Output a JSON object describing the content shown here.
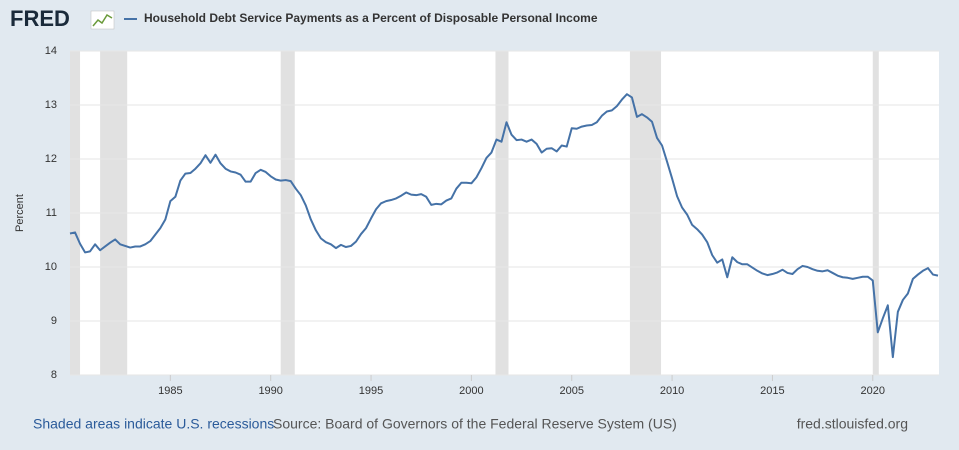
{
  "logo": "FRED",
  "footer": {
    "recession_note": "Shaded areas indicate U.S. recessions",
    "source": "Source: Board of Governors of the Federal Reserve System (US)",
    "site": "fred.stlouisfed.org"
  },
  "chart_data": {
    "type": "line",
    "ylabel": "Percent",
    "xlim": [
      1980,
      2023.3
    ],
    "xticks": [
      1985,
      1990,
      1995,
      2000,
      2005,
      2010,
      2015,
      2020
    ],
    "ylim": [
      8,
      14
    ],
    "yticks": [
      8,
      9,
      10,
      11,
      12,
      13,
      14
    ],
    "grid": true,
    "recession_color": "#e1e1e1",
    "recessions": [
      [
        1980,
        1980.5
      ],
      [
        1981.5,
        1982.85
      ],
      [
        1990.5,
        1991.2
      ],
      [
        2001.2,
        2001.85
      ],
      [
        2007.9,
        2009.45
      ],
      [
        2020,
        2020.3
      ]
    ],
    "x": [
      1980,
      1980.25,
      1980.5,
      1980.75,
      1981,
      1981.25,
      1981.5,
      1981.75,
      1982,
      1982.25,
      1982.5,
      1982.75,
      1983,
      1983.25,
      1983.5,
      1983.75,
      1984,
      1984.25,
      1984.5,
      1984.75,
      1985,
      1985.25,
      1985.5,
      1985.75,
      1986,
      1986.25,
      1986.5,
      1986.75,
      1987,
      1987.25,
      1987.5,
      1987.75,
      1988,
      1988.25,
      1988.5,
      1988.75,
      1989,
      1989.25,
      1989.5,
      1989.75,
      1990,
      1990.25,
      1990.5,
      1990.75,
      1991,
      1991.25,
      1991.5,
      1991.75,
      1992,
      1992.25,
      1992.5,
      1992.75,
      1993,
      1993.25,
      1993.5,
      1993.75,
      1994,
      1994.25,
      1994.5,
      1994.75,
      1995,
      1995.25,
      1995.5,
      1995.75,
      1996,
      1996.25,
      1996.5,
      1996.75,
      1997,
      1997.25,
      1997.5,
      1997.75,
      1998,
      1998.25,
      1998.5,
      1998.75,
      1999,
      1999.25,
      1999.5,
      1999.75,
      2000,
      2000.25,
      2000.5,
      2000.75,
      2001,
      2001.25,
      2001.5,
      2001.75,
      2002,
      2002.25,
      2002.5,
      2002.75,
      2003,
      2003.25,
      2003.5,
      2003.75,
      2004,
      2004.25,
      2004.5,
      2004.75,
      2005,
      2005.25,
      2005.5,
      2005.75,
      2006,
      2006.25,
      2006.5,
      2006.75,
      2007,
      2007.25,
      2007.5,
      2007.75,
      2008,
      2008.25,
      2008.5,
      2008.75,
      2009,
      2009.25,
      2009.5,
      2009.75,
      2010,
      2010.25,
      2010.5,
      2010.75,
      2011,
      2011.25,
      2011.5,
      2011.75,
      2012,
      2012.25,
      2012.5,
      2012.75,
      2013,
      2013.25,
      2013.5,
      2013.75,
      2014,
      2014.25,
      2014.5,
      2014.75,
      2015,
      2015.25,
      2015.5,
      2015.75,
      2016,
      2016.25,
      2016.5,
      2016.75,
      2017,
      2017.25,
      2017.5,
      2017.75,
      2018,
      2018.25,
      2018.5,
      2018.75,
      2019,
      2019.25,
      2019.5,
      2019.75,
      2020,
      2020.25,
      2020.5,
      2020.75,
      2021,
      2021.25,
      2021.5,
      2021.75,
      2022,
      2022.25,
      2022.5,
      2022.75,
      2023,
      2023.25
    ],
    "series": [
      {
        "name": "Household Debt Service Payments as a Percent of Disposable Personal Income",
        "color": "#4572a7",
        "values": [
          10.62,
          10.64,
          10.43,
          10.27,
          10.29,
          10.42,
          10.31,
          10.38,
          10.45,
          10.51,
          10.42,
          10.39,
          10.36,
          10.38,
          10.38,
          10.42,
          10.48,
          10.6,
          10.72,
          10.88,
          11.22,
          11.3,
          11.6,
          11.73,
          11.74,
          11.82,
          11.92,
          12.07,
          11.93,
          12.08,
          11.92,
          11.82,
          11.77,
          11.75,
          11.71,
          11.58,
          11.58,
          11.74,
          11.8,
          11.76,
          11.68,
          11.62,
          11.6,
          11.61,
          11.59,
          11.45,
          11.33,
          11.14,
          10.88,
          10.68,
          10.53,
          10.46,
          10.42,
          10.35,
          10.41,
          10.37,
          10.39,
          10.47,
          10.61,
          10.72,
          10.9,
          11.07,
          11.18,
          11.22,
          11.24,
          11.27,
          11.32,
          11.38,
          11.34,
          11.33,
          11.35,
          11.3,
          11.15,
          11.17,
          11.16,
          11.23,
          11.27,
          11.45,
          11.56,
          11.56,
          11.55,
          11.66,
          11.83,
          12.02,
          12.12,
          12.36,
          12.32,
          12.68,
          12.45,
          12.35,
          12.36,
          12.32,
          12.36,
          12.28,
          12.12,
          12.19,
          12.2,
          12.14,
          12.25,
          12.23,
          12.57,
          12.56,
          12.6,
          12.62,
          12.63,
          12.68,
          12.8,
          12.88,
          12.9,
          12.98,
          13.1,
          13.2,
          13.14,
          12.78,
          12.83,
          12.77,
          12.69,
          12.39,
          12.25,
          11.95,
          11.64,
          11.31,
          11.1,
          10.97,
          10.78,
          10.7,
          10.6,
          10.46,
          10.22,
          10.08,
          10.14,
          9.81,
          10.18,
          10.09,
          10.05,
          10.05,
          9.99,
          9.93,
          9.88,
          9.85,
          9.87,
          9.9,
          9.95,
          9.89,
          9.87,
          9.96,
          10.02,
          10,
          9.96,
          9.93,
          9.92,
          9.94,
          9.89,
          9.84,
          9.81,
          9.8,
          9.78,
          9.8,
          9.82,
          9.82,
          9.75,
          8.79,
          9.05,
          9.29,
          8.33,
          9.17,
          9.39,
          9.51,
          9.78,
          9.86,
          9.93,
          9.98,
          9.86,
          9.84
        ]
      }
    ]
  }
}
